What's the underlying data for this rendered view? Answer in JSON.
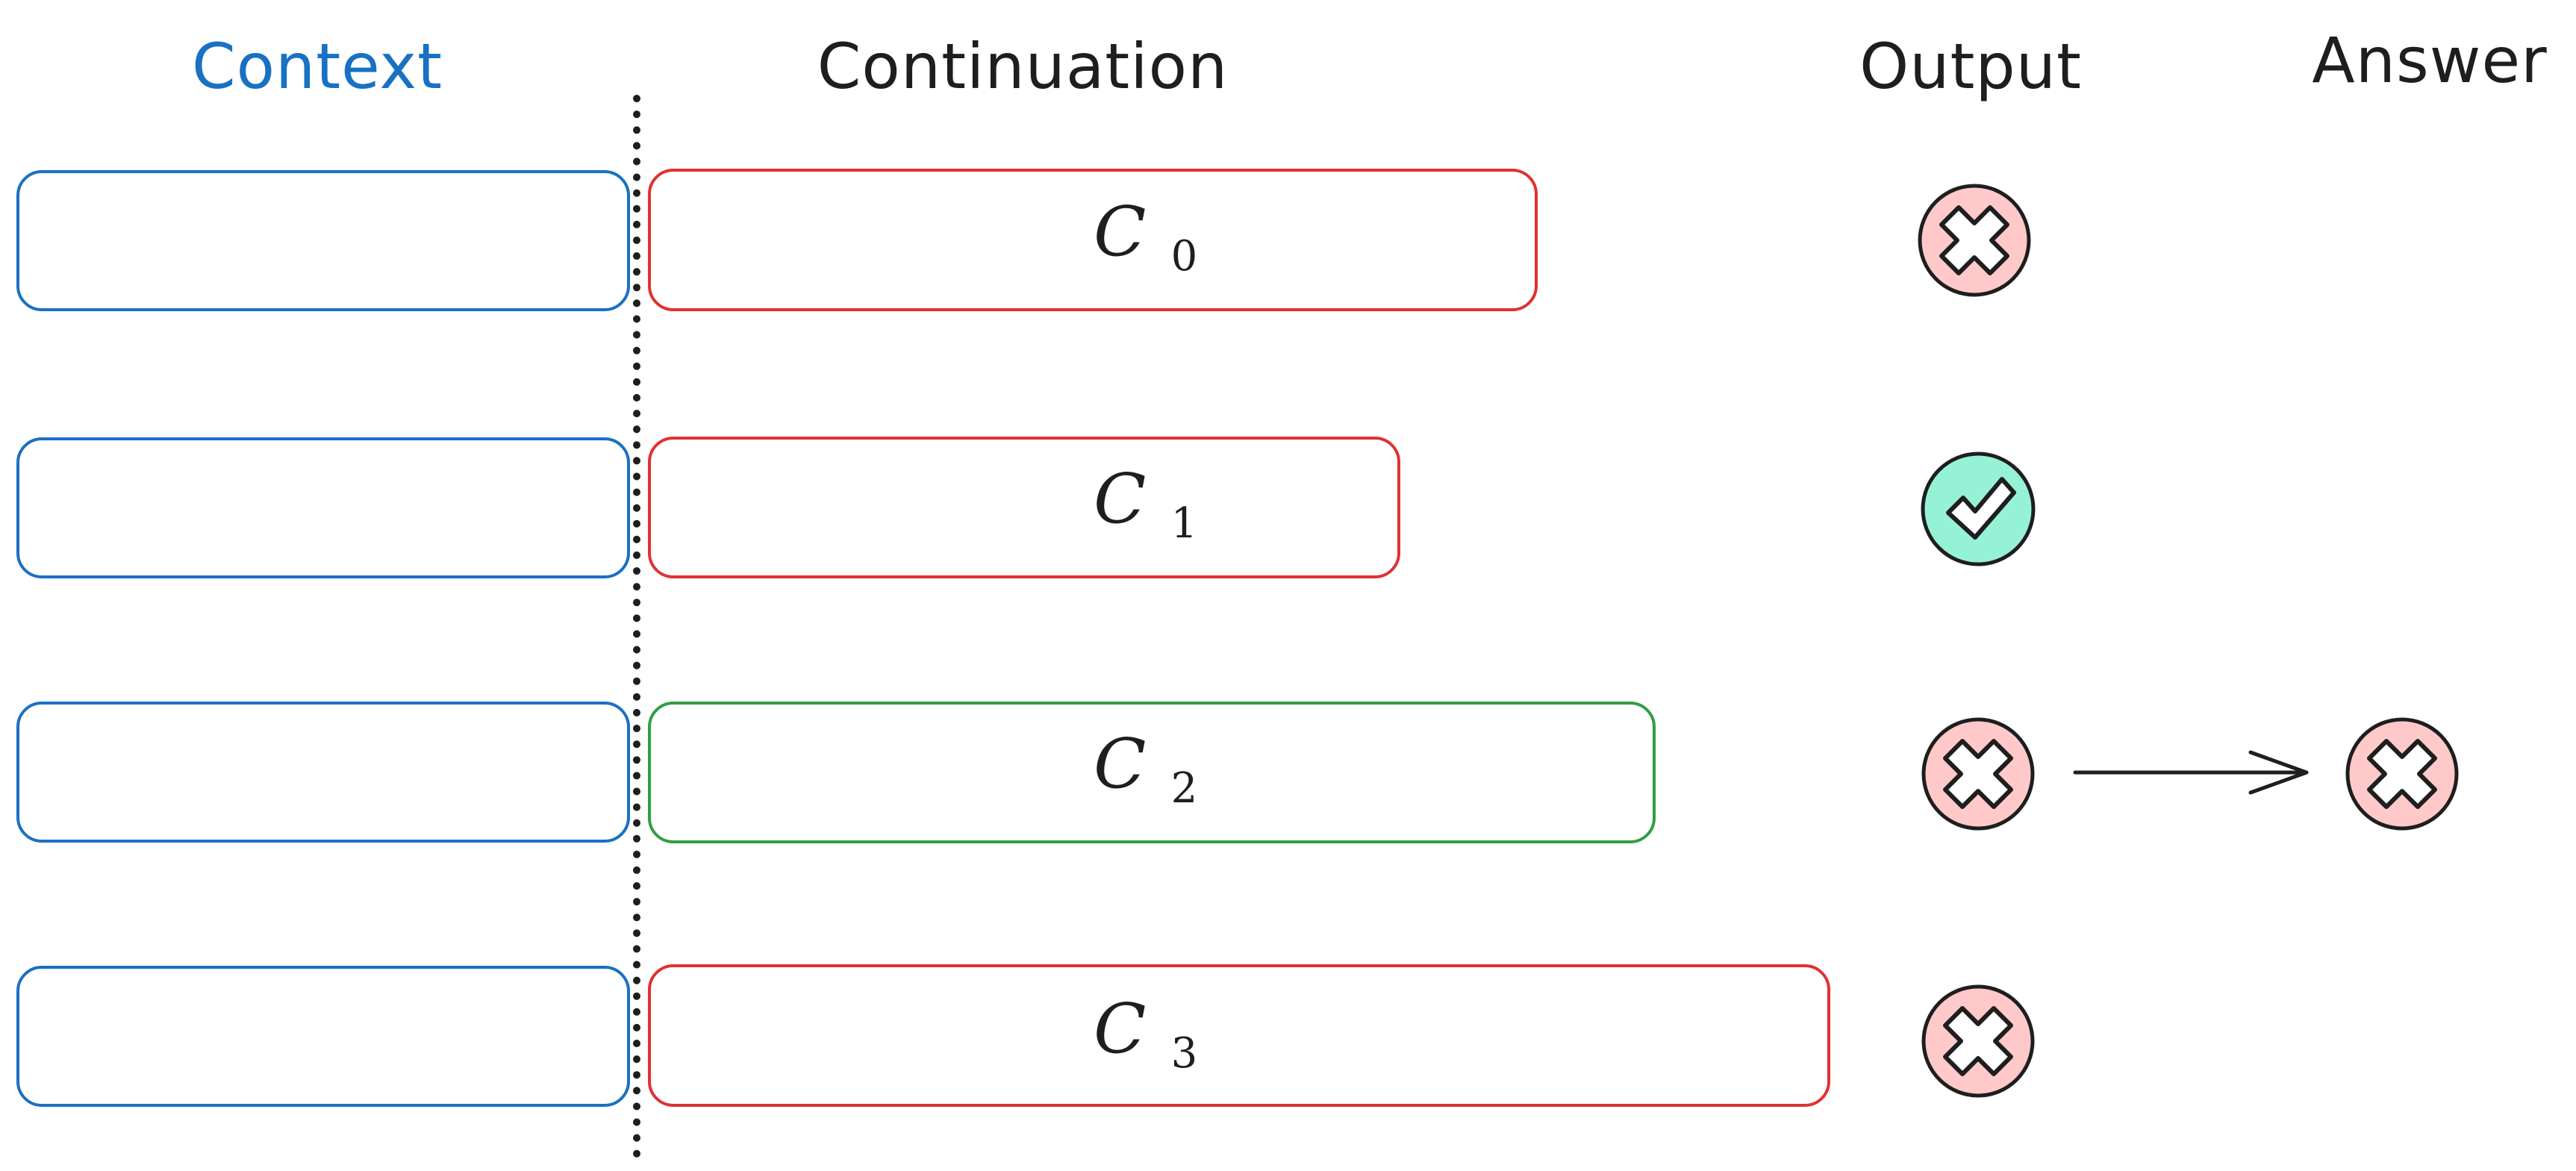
{
  "headers": {
    "context": "Context",
    "continuation": "Continuation",
    "output": "Output",
    "answer": "Answer"
  },
  "rows": [
    {
      "continuation": {
        "letter": "C",
        "index": "0"
      },
      "continuation_color": "#e03131",
      "output": "cross"
    },
    {
      "continuation": {
        "letter": "C",
        "index": "1"
      },
      "continuation_color": "#e03131",
      "output": "check"
    },
    {
      "continuation": {
        "letter": "C",
        "index": "2"
      },
      "continuation_color": "#2f9e44",
      "output": "cross",
      "answer": "cross"
    },
    {
      "continuation": {
        "letter": "C",
        "index": "3"
      },
      "continuation_color": "#e03131",
      "output": "cross"
    }
  ],
  "colors": {
    "context_box": "#1971c2",
    "context_header": "#1971c2",
    "wrong_fill": "#ffc9c9",
    "right_fill": "#96f2d7",
    "stroke": "#1e1e1e",
    "divider": "#1e1e1e"
  },
  "icons": {
    "cross": "x-circle-icon",
    "check": "check-circle-icon",
    "arrow": "arrow-right-icon"
  }
}
